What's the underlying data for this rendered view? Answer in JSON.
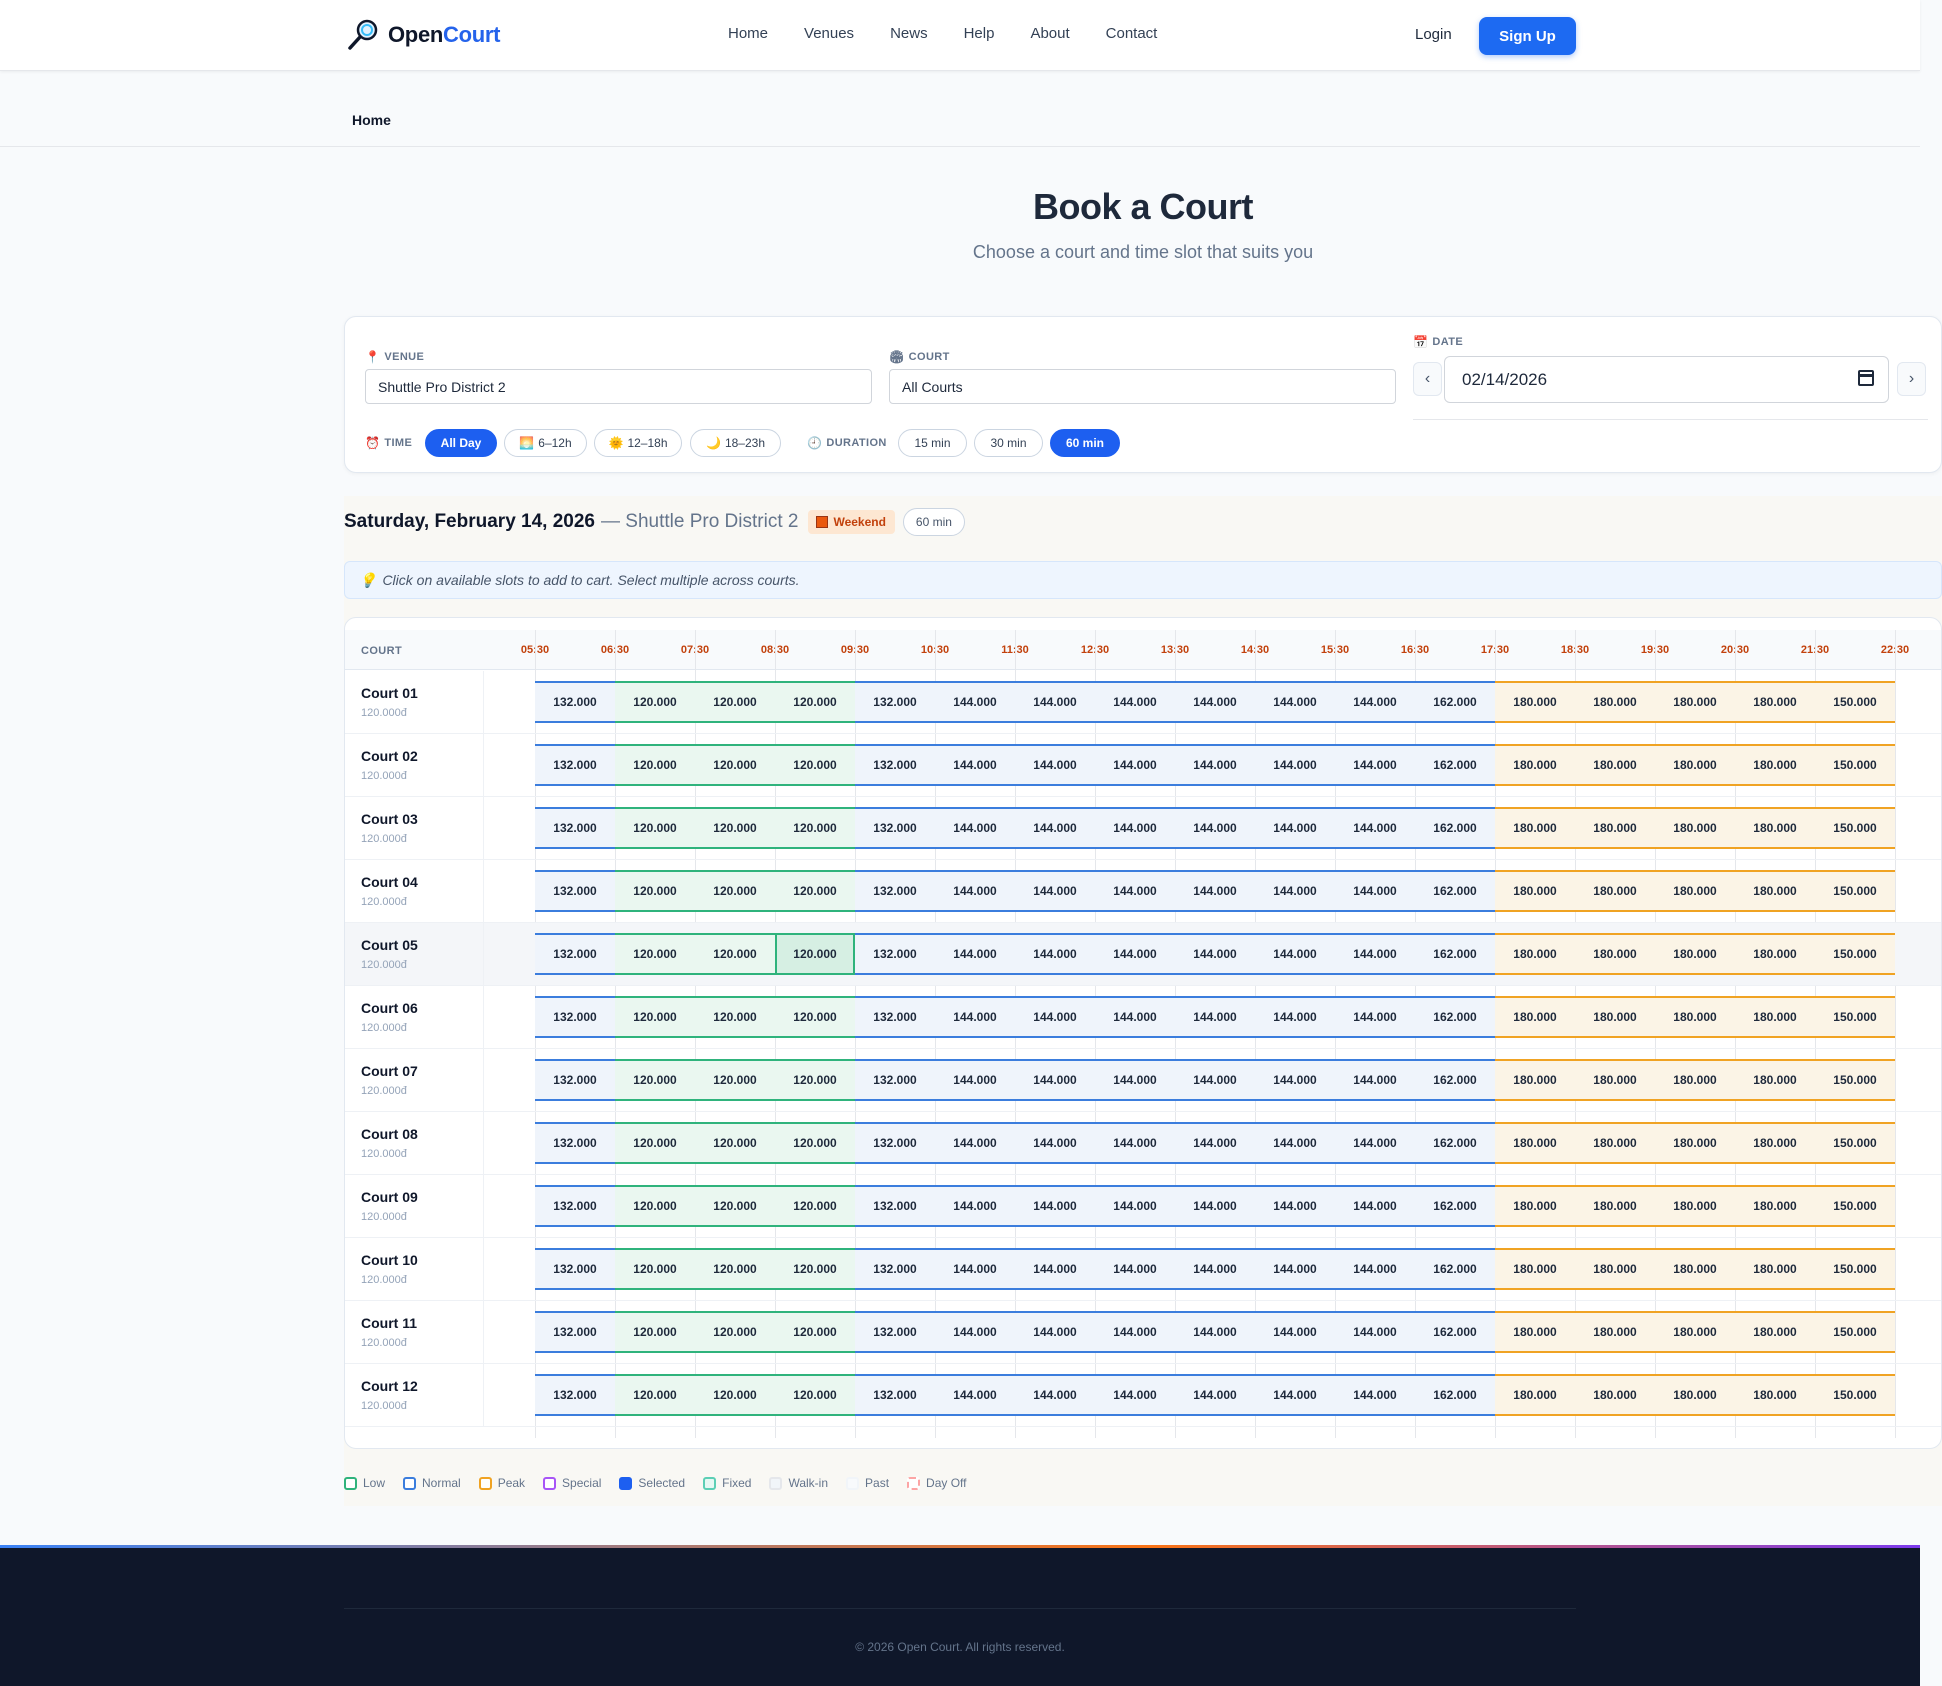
{
  "header": {
    "logo_part1": "Open",
    "logo_part2": "Court",
    "nav": [
      "Home",
      "Venues",
      "News",
      "Help",
      "About",
      "Contact"
    ],
    "login": "Login",
    "signup": "Sign Up"
  },
  "breadcrumb": "Home",
  "page": {
    "title": "Book a Court",
    "subtitle": "Choose a court and time slot that suits you"
  },
  "filters": {
    "venue_label": "VENUE",
    "venue_value": "Shuttle Pro District 2",
    "court_label": "COURT",
    "court_value": "All Courts",
    "date_label": "DATE",
    "date_value": "02/14/2026",
    "prev": "‹",
    "next": "›",
    "time_label": "TIME",
    "time_options": [
      {
        "label": "All Day",
        "icon": "",
        "active": true
      },
      {
        "label": "6–12h",
        "icon": "🌅",
        "active": false
      },
      {
        "label": "12–18h",
        "icon": "🌞",
        "active": false
      },
      {
        "label": "18–23h",
        "icon": "🌙",
        "active": false
      }
    ],
    "duration_label": "DURATION",
    "duration_options": [
      {
        "label": "15 min",
        "active": false
      },
      {
        "label": "30 min",
        "active": false
      },
      {
        "label": "60 min",
        "active": true
      }
    ]
  },
  "schedule": {
    "date": "Saturday, February 14, 2026",
    "venue": "— Shuttle Pro District 2",
    "badge": "Weekend",
    "duration": "60 min",
    "hint": "Click on available slots to add to cart. Select multiple across courts.",
    "court_header": "COURT",
    "times": [
      "05:30",
      "06:30",
      "07:30",
      "08:30",
      "09:30",
      "10:30",
      "11:30",
      "12:30",
      "13:30",
      "14:30",
      "15:30",
      "16:30",
      "17:30",
      "18:30",
      "19:30",
      "20:30",
      "21:30",
      "22:30"
    ],
    "slot_prices": [
      "132.000",
      "120.000",
      "120.000",
      "120.000",
      "132.000",
      "144.000",
      "144.000",
      "144.000",
      "144.000",
      "144.000",
      "144.000",
      "162.000",
      "180.000",
      "180.000",
      "180.000",
      "180.000",
      "150.000"
    ],
    "slot_types": [
      "normal",
      "low",
      "low",
      "low",
      "low",
      "normal",
      "normal",
      "normal",
      "normal",
      "normal",
      "normal",
      "normal",
      "peak",
      "peak",
      "peak",
      "peak",
      "peak"
    ],
    "courts": [
      {
        "name": "Court 01",
        "price": "120.000đ"
      },
      {
        "name": "Court 02",
        "price": "120.000đ"
      },
      {
        "name": "Court 03",
        "price": "120.000đ"
      },
      {
        "name": "Court 04",
        "price": "120.000đ"
      },
      {
        "name": "Court 05",
        "price": "120.000đ"
      },
      {
        "name": "Court 06",
        "price": "120.000đ"
      },
      {
        "name": "Court 07",
        "price": "120.000đ"
      },
      {
        "name": "Court 08",
        "price": "120.000đ"
      },
      {
        "name": "Court 09",
        "price": "120.000đ"
      },
      {
        "name": "Court 10",
        "price": "120.000đ"
      },
      {
        "name": "Court 11",
        "price": "120.000đ"
      },
      {
        "name": "Court 12",
        "price": "120.000đ"
      }
    ]
  },
  "legend": [
    {
      "label": "Low",
      "color": "#2fb37c",
      "fill": "#ffffff"
    },
    {
      "label": "Normal",
      "color": "#3b7ddd",
      "fill": "#ffffff"
    },
    {
      "label": "Peak",
      "color": "#f0a323",
      "fill": "#ffffff"
    },
    {
      "label": "Special",
      "color": "#a855f7",
      "fill": "#ffffff"
    },
    {
      "label": "Selected",
      "color": "#1d5ff0",
      "fill": "#1d5ff0"
    },
    {
      "label": "Fixed",
      "color": "#5ccfb5",
      "fill": "#e6f8f3"
    },
    {
      "label": "Walk-in",
      "color": "#e5e7eb",
      "fill": "#f1f5f9"
    },
    {
      "label": "Past",
      "color": "#f1f5f9",
      "fill": "#f8fafc"
    },
    {
      "label": "Day Off",
      "color": "#fca5a5",
      "fill": "#ffffff"
    }
  ],
  "footer": {
    "copyright": "© 2026 Open Court. All rights reserved."
  }
}
